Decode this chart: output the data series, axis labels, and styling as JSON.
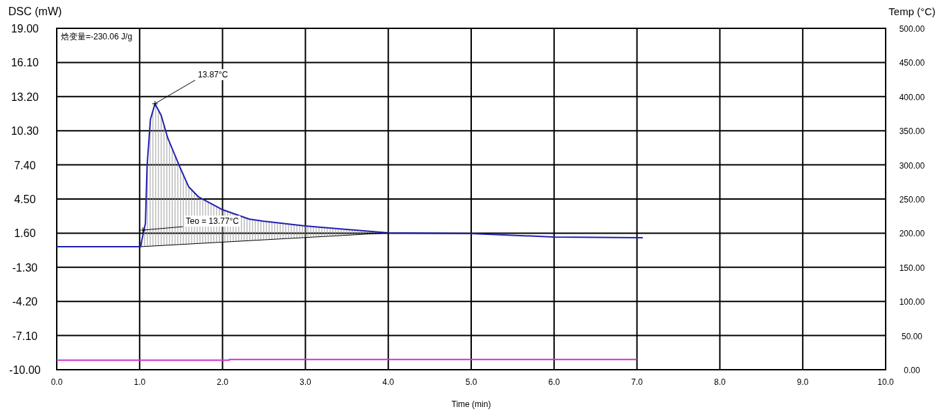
{
  "chart_data": {
    "type": "line",
    "xlabel": "Time (min)",
    "ylabel": "DSC (mW)",
    "y2label": "Temp (°C)",
    "xlim": [
      0,
      10
    ],
    "xticks": [
      {
        "value": 0,
        "label": "0.0"
      },
      {
        "value": 1,
        "label": "1.0"
      },
      {
        "value": 2,
        "label": "2.0"
      },
      {
        "value": 3,
        "label": "3.0"
      },
      {
        "value": 4,
        "label": "4.0"
      },
      {
        "value": 5,
        "label": "5.0"
      },
      {
        "value": 6,
        "label": "6.0"
      },
      {
        "value": 7,
        "label": "7.0"
      },
      {
        "value": 8,
        "label": "8.0"
      },
      {
        "value": 9,
        "label": "9.0"
      },
      {
        "value": 10,
        "label": "10.0"
      }
    ],
    "ylim": [
      -10,
      19
    ],
    "yticks": [
      {
        "value": -10,
        "label": "-10.00"
      },
      {
        "value": -7.1,
        "label": "-7.10"
      },
      {
        "value": -4.2,
        "label": "-4.20"
      },
      {
        "value": -1.3,
        "label": "-1.30"
      },
      {
        "value": 1.6,
        "label": "1.60"
      },
      {
        "value": 4.5,
        "label": "4.50"
      },
      {
        "value": 7.4,
        "label": "7.40"
      },
      {
        "value": 10.3,
        "label": "10.30"
      },
      {
        "value": 13.2,
        "label": "13.20"
      },
      {
        "value": 16.1,
        "label": "16.10"
      },
      {
        "value": 19,
        "label": "19.00"
      }
    ],
    "y2lim": [
      0,
      500
    ],
    "y2ticks": [
      {
        "value": 0,
        "label": "0.00"
      },
      {
        "value": 50,
        "label": "50.00"
      },
      {
        "value": 100,
        "label": "100.00"
      },
      {
        "value": 150,
        "label": "150.00"
      },
      {
        "value": 200,
        "label": "200.00"
      },
      {
        "value": 250,
        "label": "250.00"
      },
      {
        "value": 300,
        "label": "300.00"
      },
      {
        "value": 350,
        "label": "350.00"
      },
      {
        "value": 400,
        "label": "400.00"
      },
      {
        "value": 450,
        "label": "450.00"
      },
      {
        "value": 500,
        "label": "500.00"
      }
    ],
    "grid": true,
    "series": [
      {
        "color": "#2020b0",
        "x": [
          0,
          1.01,
          1.07,
          1.09,
          1.13,
          1.185,
          1.26,
          1.34,
          1.49,
          1.59,
          1.71,
          1.99,
          2.32,
          2.49,
          3.0,
          4.0,
          5.0,
          6.0,
          7.07
        ],
        "values": [
          0.45,
          0.45,
          2.45,
          7.32,
          11.25,
          12.6,
          11.6,
          9.67,
          7.14,
          5.56,
          4.68,
          3.62,
          2.8,
          2.62,
          2.21,
          1.62,
          1.57,
          1.27,
          1.21
        ],
        "lower": [
          null,
          0.45,
          0.47,
          0.48,
          0.5,
          0.52,
          0.55,
          0.58,
          0.64,
          0.68,
          0.72,
          0.83,
          0.96,
          1.03,
          1.23,
          1.62,
          null,
          null,
          null
        ],
        "upper": [
          null,
          0.45,
          2.45,
          7.32,
          11.25,
          12.6,
          11.6,
          9.67,
          7.14,
          5.56,
          4.68,
          3.62,
          2.8,
          2.62,
          2.21,
          1.62,
          null,
          null,
          null
        ]
      },
      {
        "color": "#cc33cc",
        "axis": "y2",
        "x": [
          0,
          2.08,
          2.08,
          7.0
        ],
        "values": [
          14,
          14,
          15,
          15
        ]
      },
      {
        "color": "#000000",
        "x": [
          1.01,
          4.0
        ],
        "values": [
          0.45,
          1.62
        ]
      }
    ],
    "annotations": [
      "焓变量=-230.06 J/g",
      {
        "text": "13.87°C",
        "x": 1.185,
        "y": 12.6
      },
      {
        "text": "Teo = 13.77°C",
        "x": 1.04,
        "y": 1.86
      }
    ]
  }
}
